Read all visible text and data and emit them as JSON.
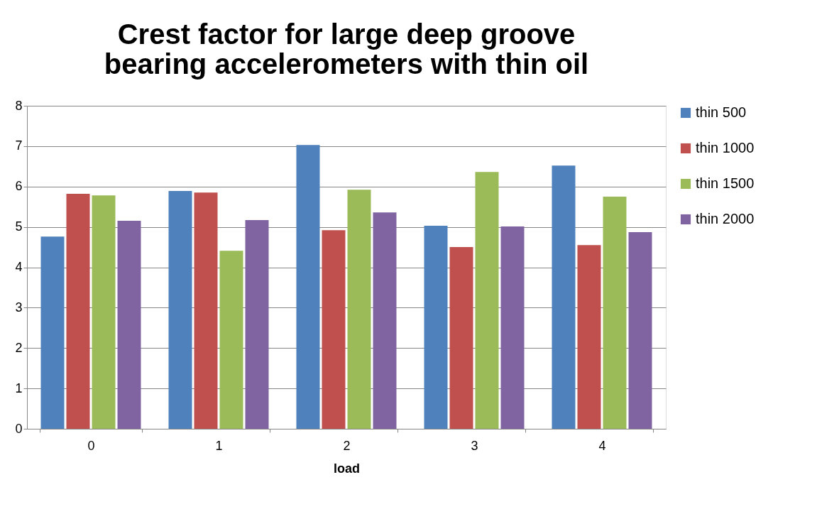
{
  "chart_data": {
    "type": "bar",
    "title": "Crest factor for large deep groove bearing accelerometers with thin oil",
    "xlabel": "load",
    "categories": [
      "0",
      "1",
      "2",
      "3",
      "4"
    ],
    "series": [
      {
        "name": "thin 500",
        "color": "#4f81bd",
        "values": [
          4.76,
          5.89,
          7.03,
          5.03,
          6.52
        ]
      },
      {
        "name": "thin 1000",
        "color": "#c0504d",
        "values": [
          5.82,
          5.85,
          4.92,
          4.5,
          4.55
        ]
      },
      {
        "name": "thin 1500",
        "color": "#9bbb59",
        "values": [
          5.78,
          4.41,
          5.92,
          6.36,
          5.75
        ]
      },
      {
        "name": "thin 2000",
        "color": "#8064a2",
        "values": [
          5.15,
          5.17,
          5.36,
          5.01,
          4.87
        ]
      }
    ],
    "ylim": [
      0,
      8
    ],
    "yticks": [
      0,
      1,
      2,
      3,
      4,
      5,
      6,
      7,
      8
    ],
    "grid": "y",
    "legend": "right"
  }
}
